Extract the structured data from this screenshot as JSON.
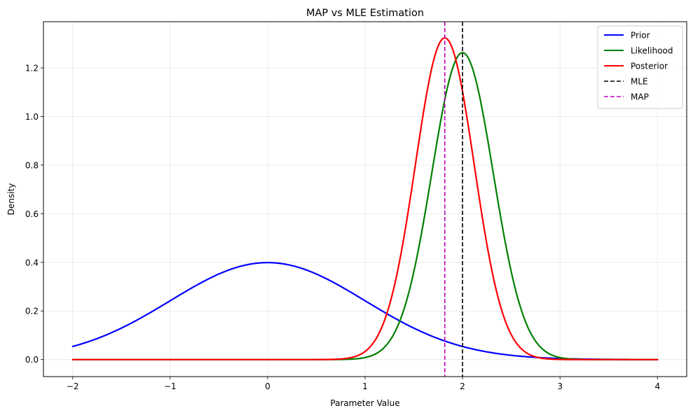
{
  "chart_data": {
    "type": "line",
    "title": "MAP vs MLE Estimation",
    "xlabel": "Parameter Value",
    "ylabel": "Density",
    "xlim": [
      -2.3,
      4.3
    ],
    "ylim": [
      -0.07,
      1.39
    ],
    "x_ticks": [
      -2,
      -1,
      0,
      1,
      2,
      3,
      4
    ],
    "x_tick_labels": [
      "−2",
      "−1",
      "0",
      "1",
      "2",
      "3",
      "4"
    ],
    "y_ticks": [
      0.0,
      0.2,
      0.4,
      0.6,
      0.8,
      1.0,
      1.2
    ],
    "y_tick_labels": [
      "0.0",
      "0.2",
      "0.4",
      "0.6",
      "0.8",
      "1.0",
      "1.2"
    ],
    "grid": true,
    "legend_position": "top-right",
    "x_range": [
      -2,
      4
    ],
    "series": [
      {
        "name": "Prior",
        "kind": "normal_pdf",
        "mean": 0.0,
        "sd": 1.0,
        "color": "#0000ff",
        "style": "solid"
      },
      {
        "name": "Likelihood",
        "kind": "normal_pdf",
        "mean": 2.0,
        "sd": 0.316,
        "color": "#008000",
        "style": "solid"
      },
      {
        "name": "Posterior",
        "kind": "normal_pdf",
        "mean": 1.818,
        "sd": 0.3015,
        "color": "#ff0000",
        "style": "solid"
      }
    ],
    "vlines": [
      {
        "name": "MLE",
        "x": 2.0,
        "color": "#000000",
        "style": "dashed"
      },
      {
        "name": "MAP",
        "x": 1.818,
        "color": "#bf00bf",
        "style": "dashed"
      }
    ]
  }
}
